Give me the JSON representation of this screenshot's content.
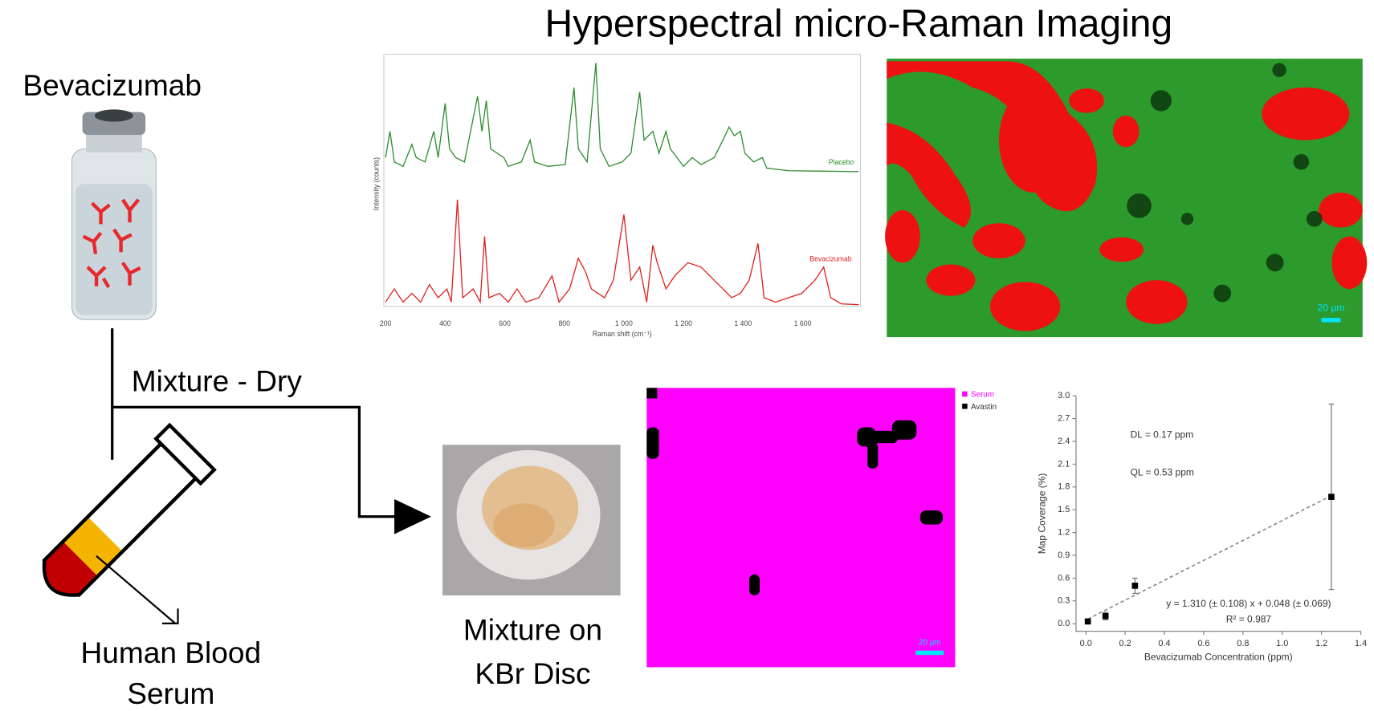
{
  "title": "Hyperspectral micro-Raman Imaging",
  "labels": {
    "drug": "Bevacizumab",
    "step": "Mixture - Dry",
    "serum_1": "Human Blood",
    "serum_2": "Serum",
    "disc_1": "Mixture on",
    "disc_2": "KBr Disc"
  },
  "spectra": {
    "y_label": "Intensity (counts)",
    "x_label": "Raman shift (cm⁻¹)",
    "series_1": "Placebo",
    "series_2": "Bevacizumab",
    "xtick_labels": [
      "200",
      "400",
      "600",
      "800",
      "1 000",
      "1 200",
      "1 400",
      "1 600"
    ]
  },
  "maps": {
    "scale_1": "20 µm",
    "scale_2": "20 µm",
    "legend": [
      "Serum",
      "Avastin"
    ]
  },
  "chart_data": {
    "type": "scatter",
    "x_label": "Bevacizumab Concentration (ppm)",
    "y_label": "Map Coverage (%)",
    "x": [
      0.01,
      0.1,
      0.25,
      1.25
    ],
    "values": [
      0.03,
      0.1,
      0.5,
      1.67
    ],
    "errors": [
      0.02,
      0.05,
      0.1,
      1.22
    ],
    "color": "#000000",
    "xlim": [
      -0.05,
      1.4
    ],
    "xticks": [
      {
        "value": 0,
        "label": "0.0"
      },
      0.2,
      0.4,
      0.6,
      0.8,
      {
        "value": 1,
        "label": "1.0"
      },
      1.2,
      1.4
    ],
    "ylim": [
      -0.1,
      3.0
    ],
    "yticks": [
      {
        "value": 0,
        "label": "0.0"
      },
      0.3,
      0.6,
      0.9,
      1.2,
      1.5,
      1.8,
      2.1,
      2.4,
      2.7,
      {
        "value": 3,
        "label": "3.0"
      }
    ],
    "fit": {
      "slope": 1.31,
      "intercept": 0.048
    },
    "annotations": [
      "DL = 0.17 ppm",
      "QL = 0.53 ppm",
      "y = 1.310 (± 0.108) x + 0.048 (± 0.069)",
      "R² = 0.987"
    ]
  }
}
